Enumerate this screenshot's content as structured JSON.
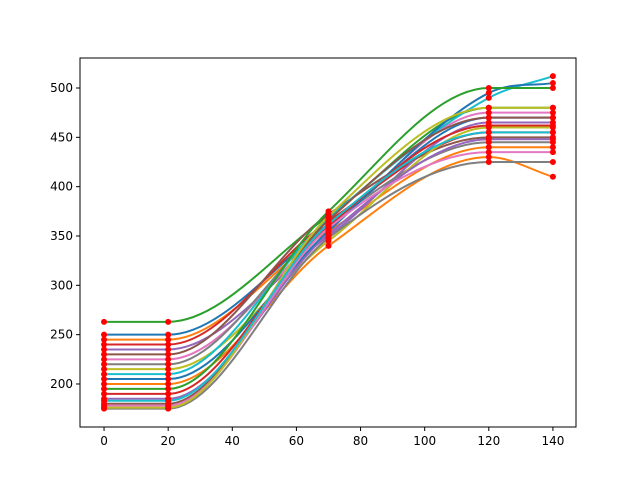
{
  "chart_data": {
    "type": "line",
    "x": [
      0,
      20,
      70,
      120,
      140
    ],
    "xlim": [
      -7.5,
      147.2
    ],
    "xticks": [
      0,
      20,
      40,
      60,
      80,
      100,
      120,
      140
    ],
    "ylim": [
      156.4,
      530.4
    ],
    "yticks": [
      200,
      250,
      300,
      350,
      400,
      450,
      500
    ],
    "grid": false,
    "marker_color": "#ff0000",
    "series": [
      {
        "color": "#1f77b4",
        "values": [
          250,
          250,
          360,
          470,
          470
        ]
      },
      {
        "color": "#ff7f0e",
        "values": [
          245,
          245,
          355,
          440,
          440
        ]
      },
      {
        "color": "#2ca02c",
        "values": [
          263,
          263,
          370,
          480,
          480
        ]
      },
      {
        "color": "#d62728",
        "values": [
          240,
          240,
          365,
          455,
          455
        ]
      },
      {
        "color": "#9467bd",
        "values": [
          235,
          235,
          350,
          465,
          465
        ]
      },
      {
        "color": "#8c564b",
        "values": [
          230,
          230,
          372,
          450,
          450
        ]
      },
      {
        "color": "#e377c2",
        "values": [
          225,
          225,
          358,
          475,
          475
        ]
      },
      {
        "color": "#7f7f7f",
        "values": [
          220,
          220,
          362,
          445,
          445
        ]
      },
      {
        "color": "#bcbd22",
        "values": [
          215,
          215,
          345,
          460,
          460
        ]
      },
      {
        "color": "#17becf",
        "values": [
          210,
          210,
          368,
          490,
          512
        ]
      },
      {
        "color": "#1f77b4",
        "values": [
          205,
          205,
          355,
          495,
          505
        ]
      },
      {
        "color": "#ff7f0e",
        "values": [
          200,
          200,
          340,
          430,
          410
        ]
      },
      {
        "color": "#2ca02c",
        "values": [
          195,
          195,
          375,
          500,
          500
        ]
      },
      {
        "color": "#d62728",
        "values": [
          190,
          190,
          360,
          462,
          462
        ]
      },
      {
        "color": "#9467bd",
        "values": [
          185,
          185,
          352,
          448,
          448
        ]
      },
      {
        "color": "#8c564b",
        "values": [
          180,
          180,
          366,
          470,
          470
        ]
      },
      {
        "color": "#e377c2",
        "values": [
          178,
          178,
          358,
          435,
          435
        ]
      },
      {
        "color": "#7f7f7f",
        "values": [
          175,
          175,
          348,
          425,
          425
        ]
      },
      {
        "color": "#bcbd22",
        "values": [
          176,
          176,
          370,
          480,
          480
        ]
      },
      {
        "color": "#17becf",
        "values": [
          183,
          183,
          362,
          455,
          455
        ]
      }
    ]
  }
}
